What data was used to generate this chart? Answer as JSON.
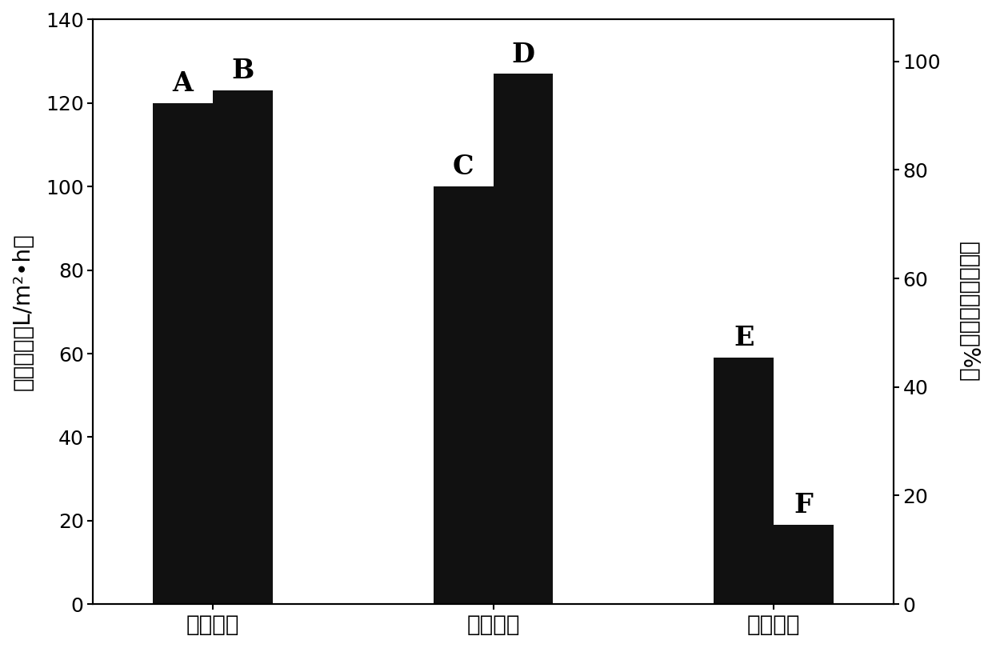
{
  "groups": [
    "实施例一",
    "实施例二",
    "实施例三"
  ],
  "bar_labels": [
    "A",
    "B",
    "C",
    "D",
    "E",
    "F"
  ],
  "bar_values": [
    120,
    123,
    100,
    127,
    59,
    19
  ],
  "bar_color": "#111111",
  "left_ylabel": "过滤通量（L/m²•h）",
  "right_ylabel": "大肠杆菌灭活率（%）",
  "ylim_left": [
    0,
    140
  ],
  "ylim_right": [
    0,
    107.69
  ],
  "yticks_left": [
    0,
    20,
    40,
    60,
    80,
    100,
    120,
    140
  ],
  "yticks_right": [
    0,
    20,
    40,
    60,
    80,
    100
  ],
  "bar_width": 0.32,
  "group_centers": [
    1.0,
    2.5,
    4.0
  ],
  "label_fontsize": 24,
  "tick_fontsize": 18,
  "axis_label_fontsize": 20,
  "background_color": "#ffffff"
}
